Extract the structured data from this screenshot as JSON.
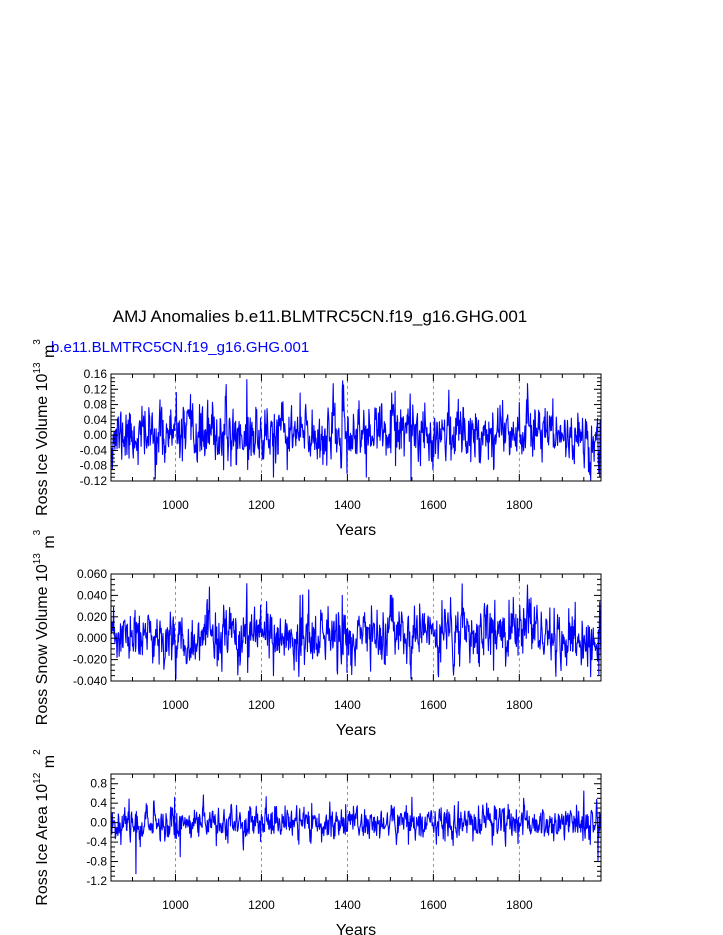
{
  "title": "AMJ Anomalies b.e11.BLMTRC5CN.f19_g16.GHG.001",
  "legend_label": "b.e11.BLMTRC5CN.f19_g16.GHG.001",
  "colors": {
    "series": "#0000ff",
    "axis": "#000000",
    "refline": "#808080"
  },
  "chart_data": [
    {
      "type": "line",
      "ylabel": "Ross Ice Volume",
      "yunit_base": "10",
      "yunit_exp": "13",
      "yunit_m": "m",
      "yunit_m_exp": "3",
      "xlabel": "Years",
      "xlim": [
        850,
        1990
      ],
      "ylim": [
        -0.12,
        0.16
      ],
      "yticks": [
        -0.12,
        -0.08,
        -0.04,
        0.0,
        0.04,
        0.08,
        0.12,
        0.16
      ],
      "ytick_labels": [
        "-0.12",
        "-0.08",
        "-0.04",
        "0.00",
        "0.04",
        "0.08",
        "0.12",
        "0.16"
      ],
      "xticks": [
        1000,
        1200,
        1400,
        1600,
        1800
      ],
      "xtick_labels": [
        "1000",
        "1200",
        "1400",
        "1600",
        "1800"
      ],
      "reference_lines_x": [
        1000,
        1200,
        1400,
        1600,
        1800
      ],
      "series": [
        {
          "color": "#0000ff",
          "x_start": 850,
          "x_end": 1990,
          "noise_std": 0.035,
          "noise_seed": 11,
          "trend_knots": [
            [
              850,
              0.0
            ],
            [
              1000,
              0.0
            ],
            [
              1200,
              0.0
            ],
            [
              1400,
              0.0
            ],
            [
              1500,
              0.01
            ],
            [
              1600,
              0.01
            ],
            [
              1700,
              0.01
            ],
            [
              1800,
              0.02
            ],
            [
              1850,
              0.02
            ],
            [
              1900,
              0.0
            ],
            [
              1990,
              -0.02
            ]
          ],
          "events": [
            [
              1166,
              0.145
            ],
            [
              1168,
              -0.09
            ],
            [
              1228,
              -0.11
            ],
            [
              1290,
              0.11
            ],
            [
              1388,
              0.12
            ],
            [
              1399,
              -0.1
            ],
            [
              1503,
              0.11
            ],
            [
              1512,
              -0.08
            ],
            [
              1548,
              -0.12
            ],
            [
              1740,
              -0.09
            ],
            [
              1966,
              -0.12
            ],
            [
              1985,
              -0.1
            ],
            [
              1988,
              0.04
            ]
          ],
          "clip": [
            -0.12,
            0.15
          ]
        }
      ]
    },
    {
      "type": "line",
      "ylabel": "Ross Snow Volume",
      "yunit_base": "10",
      "yunit_exp": "13",
      "yunit_m": "m",
      "yunit_m_exp": "3",
      "xlabel": "Years",
      "xlim": [
        850,
        1990
      ],
      "ylim": [
        -0.04,
        0.06
      ],
      "yticks": [
        -0.04,
        -0.02,
        0.0,
        0.02,
        0.04,
        0.06
      ],
      "ytick_labels": [
        "-0.040",
        "-0.020",
        "0.000",
        "0.020",
        "0.040",
        "0.060"
      ],
      "xticks": [
        1000,
        1200,
        1400,
        1600,
        1800
      ],
      "xtick_labels": [
        "1000",
        "1200",
        "1400",
        "1600",
        "1800"
      ],
      "reference_lines_x": [
        1000,
        1200,
        1400,
        1600,
        1800
      ],
      "series": [
        {
          "color": "#0000ff",
          "x_start": 850,
          "x_end": 1990,
          "noise_std": 0.012,
          "noise_seed": 23,
          "trend_knots": [
            [
              850,
              0.0
            ],
            [
              1000,
              0.0
            ],
            [
              1200,
              0.0
            ],
            [
              1400,
              0.0
            ],
            [
              1500,
              0.002
            ],
            [
              1600,
              0.004
            ],
            [
              1700,
              0.004
            ],
            [
              1800,
              0.008
            ],
            [
              1850,
              0.008
            ],
            [
              1900,
              0.0
            ],
            [
              1990,
              -0.008
            ]
          ],
          "events": [
            [
              1166,
              0.051
            ],
            [
              1168,
              -0.032
            ],
            [
              1228,
              -0.035
            ],
            [
              1290,
              0.04
            ],
            [
              1388,
              0.04
            ],
            [
              1399,
              -0.032
            ],
            [
              1503,
              0.04
            ],
            [
              1548,
              -0.038
            ],
            [
              1740,
              -0.03
            ],
            [
              1966,
              -0.036
            ],
            [
              1985,
              -0.034
            ],
            [
              1988,
              0.016
            ]
          ],
          "clip": [
            -0.038,
            0.051
          ]
        }
      ]
    },
    {
      "type": "line",
      "ylabel": "Ross Ice Area",
      "yunit_base": "10",
      "yunit_exp": "12",
      "yunit_m": "m",
      "yunit_m_exp": "2",
      "xlabel": "Years",
      "xlim": [
        850,
        1990
      ],
      "ylim": [
        -1.2,
        1.0
      ],
      "yticks": [
        -1.2,
        -0.8,
        -0.4,
        0.0,
        0.4,
        0.8
      ],
      "ytick_labels": [
        "-1.2",
        "-0.8",
        "-0.4",
        "0.0",
        "0.4",
        "0.8"
      ],
      "xticks": [
        1000,
        1200,
        1400,
        1600,
        1800
      ],
      "xtick_labels": [
        "1000",
        "1200",
        "1400",
        "1600",
        "1800"
      ],
      "reference_lines_x": [
        1000,
        1200,
        1400,
        1600,
        1800
      ],
      "series": [
        {
          "color": "#0000ff",
          "x_start": 850,
          "x_end": 1990,
          "noise_std": 0.16,
          "noise_seed": 37,
          "trend_knots": [
            [
              850,
              0.0
            ],
            [
              1990,
              0.0
            ]
          ],
          "events": [
            [
              908,
              -1.05
            ],
            [
              998,
              0.52
            ],
            [
              1011,
              -0.7
            ],
            [
              1550,
              0.52
            ],
            [
              1810,
              0.5
            ],
            [
              1950,
              0.65
            ],
            [
              1965,
              -0.45
            ],
            [
              1983,
              -0.8
            ]
          ],
          "clip": [
            -1.05,
            0.65
          ]
        }
      ]
    }
  ]
}
